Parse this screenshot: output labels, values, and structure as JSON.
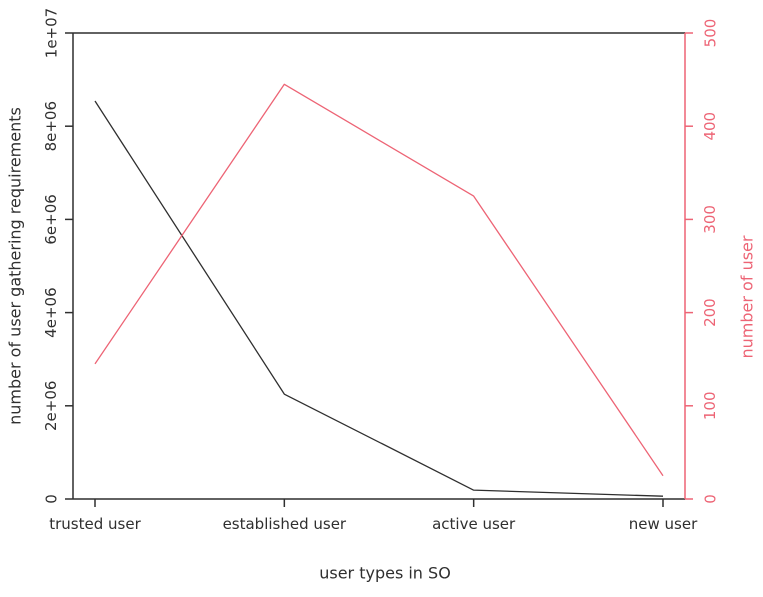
{
  "chart_data": {
    "type": "line",
    "title": "",
    "xlabel": "user types in SO",
    "categories": [
      "trusted user",
      "established user",
      "active user",
      "new user"
    ],
    "series": [
      {
        "name": "number of user gathering requirements",
        "axis": "left",
        "color": "#2f2f2f",
        "values": [
          8540000,
          2250000,
          190000,
          60000
        ]
      },
      {
        "name": "number of user",
        "axis": "right",
        "color": "#ed6475",
        "values": [
          145,
          445,
          325,
          25
        ]
      }
    ],
    "left_axis": {
      "label": "number of user gathering requirements",
      "range": [
        0,
        10000000
      ],
      "tick_values": [
        0,
        2000000,
        4000000,
        6000000,
        8000000,
        10000000
      ],
      "tick_labels": [
        "0",
        "2e+06",
        "4e+06",
        "6e+06",
        "8e+06",
        "1e+07"
      ],
      "color": "#2f2f2f"
    },
    "right_axis": {
      "label": "number of user",
      "range": [
        0,
        500
      ],
      "tick_values": [
        0,
        100,
        200,
        300,
        400,
        500
      ],
      "tick_labels": [
        "0",
        "100",
        "200",
        "300",
        "400",
        "500"
      ],
      "color": "#ed6475"
    },
    "grid": false,
    "legend": "none",
    "top_border": true
  },
  "colors": {
    "background": "#ffffff",
    "text": "#2f2f2f"
  }
}
